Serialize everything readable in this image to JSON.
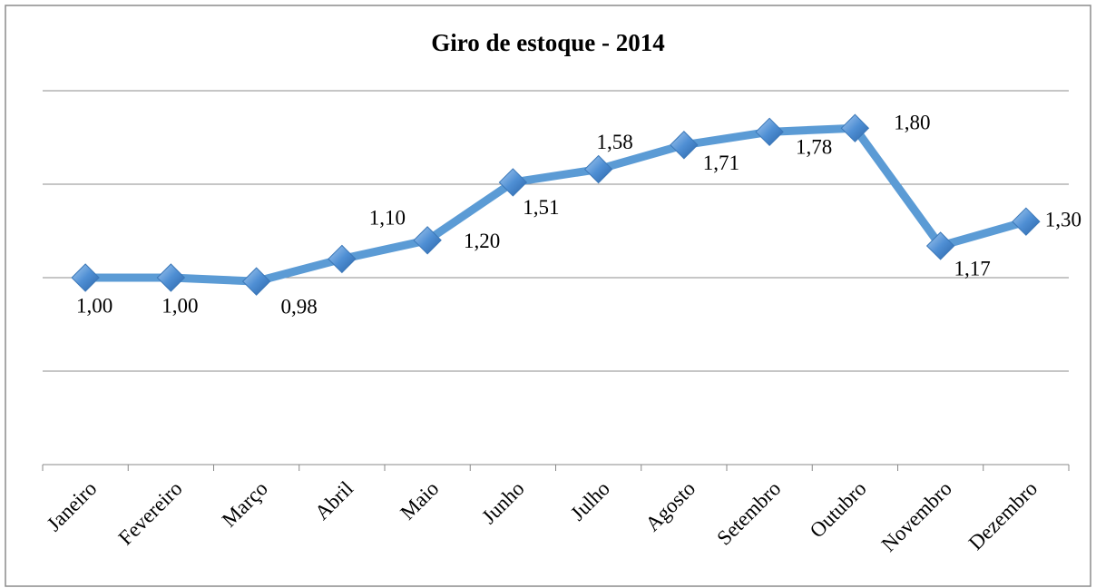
{
  "chart_data": {
    "type": "line",
    "title": "Giro de estoque - 2014",
    "categories": [
      "Janeiro",
      "Fevereiro",
      "Março",
      "Abril",
      "Maio",
      "Junho",
      "Julho",
      "Agosto",
      "Setembro",
      "Outubro",
      "Novembro",
      "Dezembro"
    ],
    "values": [
      1.0,
      1.0,
      0.98,
      1.1,
      1.2,
      1.51,
      1.58,
      1.71,
      1.78,
      1.8,
      1.17,
      1.3
    ],
    "value_labels": [
      "1,00",
      "1,00",
      "0,98",
      "1,10",
      "1,20",
      "1,51",
      "1,58",
      "1,71",
      "1,78",
      "1,80",
      "1,17",
      "1,30"
    ],
    "color": "#5b9bd5",
    "ylim": [
      0,
      2
    ],
    "yticks": [
      0,
      0.5,
      1,
      1.5,
      2
    ],
    "grid": true
  }
}
